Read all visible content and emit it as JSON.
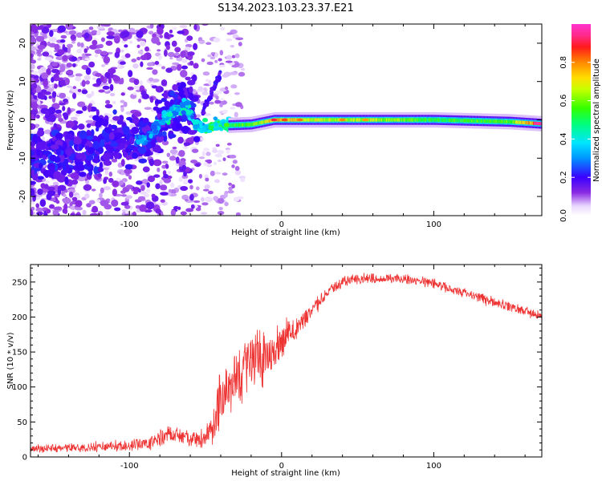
{
  "title": "S134.2023.103.23.37.E21",
  "chart_data": [
    {
      "type": "heatmap",
      "xlabel": "Height of straight line (km)",
      "ylabel": "Frequency (Hz)",
      "xlim": [
        -165,
        171
      ],
      "ylim": [
        -25,
        25
      ],
      "xticks": [
        -100,
        0,
        100
      ],
      "yticks": [
        -20,
        -10,
        0,
        10,
        20
      ],
      "colorbar": {
        "label": "Normalized spectral amplitude",
        "range": [
          0,
          1
        ],
        "ticks": [
          "0.0",
          "0.2",
          "0.4",
          "0.6",
          "0.8"
        ],
        "colormap": "gist_ncar-like (white, purple, blue, cyan, green, yellow, orange, red, pink)"
      },
      "ridge": {
        "description": "dominant spectral line",
        "points": [
          {
            "x": -165,
            "y": -10,
            "amp": 0.25
          },
          {
            "x": -135,
            "y": -8,
            "amp": 0.25
          },
          {
            "x": -110,
            "y": -5,
            "amp": 0.22
          },
          {
            "x": -90,
            "y": -5.5,
            "amp": 0.35
          },
          {
            "x": -80,
            "y": -1,
            "amp": 0.4
          },
          {
            "x": -70,
            "y": 2.5,
            "amp": 0.45
          },
          {
            "x": -62,
            "y": 3.5,
            "amp": 0.4
          },
          {
            "x": -55,
            "y": -2,
            "amp": 0.45
          },
          {
            "x": -40,
            "y": -1.5,
            "amp": 0.55
          },
          {
            "x": -20,
            "y": -1.2,
            "amp": 0.6
          },
          {
            "x": -5,
            "y": 0,
            "amp": 0.8
          },
          {
            "x": 20,
            "y": 0,
            "amp": 0.7
          },
          {
            "x": 60,
            "y": 0,
            "amp": 0.68
          },
          {
            "x": 100,
            "y": 0,
            "amp": 0.55
          },
          {
            "x": 150,
            "y": -0.5,
            "amp": 0.6
          },
          {
            "x": 170,
            "y": -1,
            "amp": 0.95
          }
        ]
      }
    },
    {
      "type": "line",
      "xlabel": "Height of straight line (km)",
      "ylabel": "SNR (10 * v/v)",
      "xlim": [
        -165,
        171
      ],
      "ylim": [
        0,
        275
      ],
      "xticks": [
        -100,
        0,
        100
      ],
      "yticks": [
        0,
        50,
        100,
        150,
        200,
        250
      ],
      "series": [
        {
          "color": "#ee3333",
          "envelope": {
            "x": [
              -165,
              -150,
              -130,
              -110,
              -90,
              -75,
              -65,
              -55,
              -45,
              -40,
              -35,
              -30,
              -25,
              -20,
              -15,
              -10,
              -5,
              0,
              5,
              10,
              15,
              20,
              30,
              40,
              50,
              60,
              70,
              80,
              90,
              100,
              110,
              120,
              130,
              140,
              150,
              160,
              171
            ],
            "mean": [
              12,
              12,
              13,
              15,
              18,
              32,
              32,
              22,
              38,
              90,
              105,
              110,
              125,
              135,
              140,
              145,
              150,
              165,
              180,
              185,
              195,
              210,
              235,
              250,
              255,
              255,
              255,
              255,
              250,
              248,
              240,
              235,
              228,
              222,
              215,
              208,
              200
            ],
            "spread": [
              7,
              8,
              9,
              10,
              12,
              18,
              20,
              15,
              35,
              60,
              60,
              55,
              60,
              60,
              55,
              50,
              45,
              40,
              30,
              25,
              22,
              15,
              12,
              10,
              10,
              10,
              10,
              10,
              10,
              10,
              10,
              10,
              10,
              10,
              10,
              10,
              10
            ]
          }
        }
      ]
    }
  ]
}
